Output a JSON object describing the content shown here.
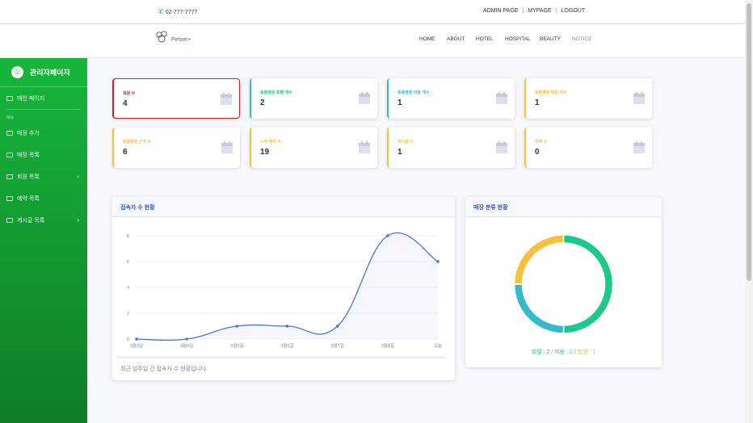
{
  "topbar": {
    "phone": "02-777-7777",
    "links": [
      "ADMIN PAGE",
      "MYPAGE",
      "LOGOUT"
    ],
    "separator": "|"
  },
  "navbar": {
    "logo_text": "Petner",
    "logo_plus": "+",
    "items": [
      "HOME",
      "ABOUT",
      "HOTEL",
      "HOSPITAL",
      "BEAUTY",
      "NOTICE"
    ]
  },
  "sidebar": {
    "brand": "관리자페이지",
    "brand_icon": "smile-icon",
    "dashboard": "메인 페이지",
    "section_heading": "메뉴",
    "items": [
      {
        "label": "매장 추가",
        "has_arrow": false
      },
      {
        "label": "매장 목록",
        "has_arrow": false
      },
      {
        "label": "회원 목록",
        "has_arrow": true
      },
      {
        "label": "예약 목록",
        "has_arrow": false
      },
      {
        "label": "게시글 목록",
        "has_arrow": true
      }
    ]
  },
  "stats": [
    {
      "label": "회원 수",
      "value": "4",
      "color": "#c0262b"
    },
    {
      "label": "동물병원 호텔 개수",
      "value": "2",
      "color": "#1cc88a"
    },
    {
      "label": "동물병원 미용 개수",
      "value": "1",
      "color": "#36b9cc"
    },
    {
      "label": "동물병원 병원 개수",
      "value": "1",
      "color": "#f6c23e"
    },
    {
      "label": "동물병원 근처 수",
      "value": "6",
      "color": "#f6c23e"
    },
    {
      "label": "누적 예약 수",
      "value": "19",
      "color": "#f6c23e"
    },
    {
      "label": "게시글 수",
      "value": "1",
      "color": "#f6c23e"
    },
    {
      "label": "리뷰 수",
      "value": "0",
      "color": "#f6c23e"
    }
  ],
  "line_panel": {
    "title": "접속자 수 현황",
    "footer": "최근 일주일 간 접속자 수 현황입니다"
  },
  "donut_panel": {
    "title": "매장 분류 현황",
    "caption_hotel": "호텔 : 2",
    "caption_beauty": "미용 : 1",
    "caption_hospital": "병원 : 1",
    "caption_sep": " / "
  },
  "chart_data": [
    {
      "type": "line",
      "x": [
        "3월3일",
        "3월4일",
        "3월5일",
        "3월6일",
        "3월7일",
        "3월8일",
        "오늘"
      ],
      "series": [
        {
          "values": [
            0,
            0,
            1,
            1,
            1,
            8,
            6
          ]
        }
      ],
      "ylim": [
        0,
        8
      ],
      "yticks": [
        0,
        2,
        4,
        6,
        8
      ],
      "grid": true,
      "color": "#4e73df"
    },
    {
      "type": "pie",
      "categories": [
        "호텔",
        "미용",
        "병원"
      ],
      "values": [
        2,
        1,
        1
      ],
      "colors": [
        "#1cc88a",
        "#36b9cc",
        "#f6c23e"
      ],
      "donut": true
    }
  ]
}
